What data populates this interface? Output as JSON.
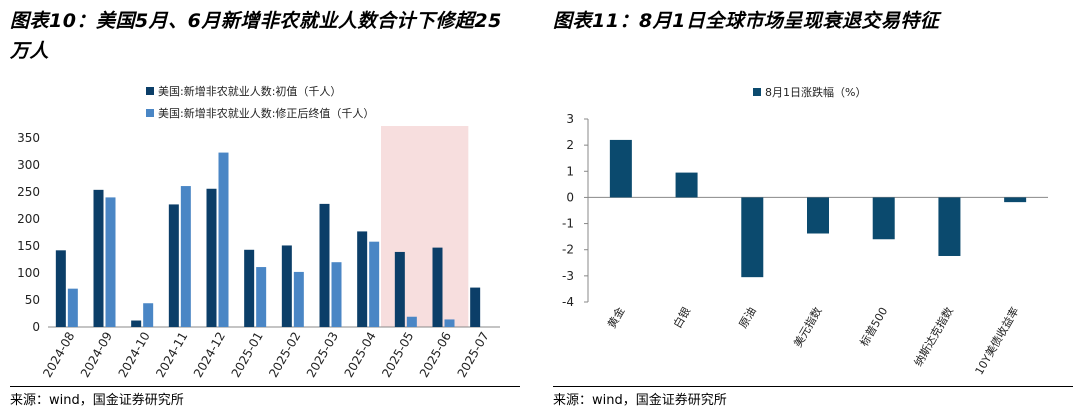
{
  "left_panel": {
    "title": "图表10：美国5月、6月新增非农就业人数合计下修超25万人",
    "source": "来源：wind，国金证券研究所"
  },
  "right_panel": {
    "title": "图表11：8月1日全球市场呈现衰退交易特征",
    "source": "来源：wind，国金证券研究所"
  },
  "colors": {
    "initial": "#0b3e68",
    "revised": "#4a86c5",
    "market": "#0b4a6e",
    "highlight": "#f7dede"
  },
  "chart_data": [
    {
      "type": "bar",
      "categories": [
        "2024-08",
        "2024-09",
        "2024-10",
        "2024-11",
        "2024-12",
        "2025-01",
        "2025-02",
        "2025-03",
        "2025-04",
        "2025-05",
        "2025-06",
        "2025-07"
      ],
      "series": [
        {
          "name": "美国:新增非农就业人数:初值（千人）",
          "values": [
            142,
            254,
            12,
            227,
            256,
            143,
            151,
            228,
            177,
            139,
            147,
            73
          ]
        },
        {
          "name": "美国:新增非农就业人数:修正后终值（千人）",
          "values": [
            71,
            240,
            44,
            261,
            323,
            111,
            102,
            120,
            158,
            19,
            14,
            null
          ]
        }
      ],
      "ylim": [
        0,
        350
      ],
      "yticks": [
        0,
        50,
        100,
        150,
        200,
        250,
        300,
        350
      ],
      "highlight_categories": [
        "2025-05",
        "2025-06"
      ],
      "legend_position": "top-left"
    },
    {
      "type": "bar",
      "categories": [
        "黄金",
        "白银",
        "原油",
        "美元指数",
        "标普500",
        "纳斯达克指数",
        "10Y美债收益率"
      ],
      "series": [
        {
          "name": "8月1日涨跌幅（%）",
          "values": [
            2.2,
            0.95,
            -3.05,
            -1.38,
            -1.6,
            -2.24,
            -0.18
          ]
        }
      ],
      "ylim": [
        -4,
        3
      ],
      "yticks": [
        3,
        2,
        1,
        0,
        -1,
        -2,
        -3,
        -4
      ],
      "legend_position": "top-center"
    }
  ]
}
